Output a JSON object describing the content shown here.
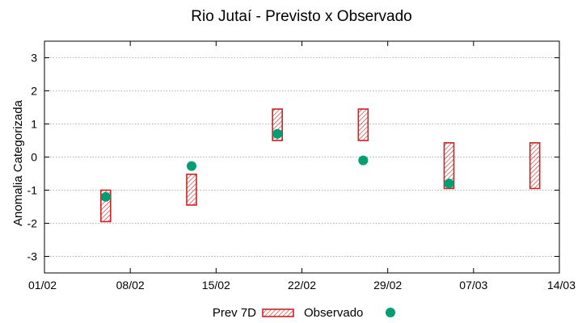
{
  "chart_data": {
    "type": "scatter",
    "title": "Rio Jutaí - Previsto x Observado",
    "xlabel": "",
    "ylabel": "Anomalia Categorizada",
    "x_range": [
      "01/02",
      "14/03"
    ],
    "ylim": [
      -3.5,
      3.5
    ],
    "x_ticks": [
      "01/02",
      "08/02",
      "15/02",
      "22/02",
      "29/02",
      "07/03",
      "14/03"
    ],
    "y_ticks": [
      -3,
      -2,
      -1,
      0,
      1,
      2,
      3
    ],
    "grid": "horizontal dotted",
    "legend_position": "bottom",
    "series": [
      {
        "name": "Prev 7D",
        "kind": "range-box",
        "color": "#cc2222",
        "points": [
          {
            "x": "06/02",
            "low": -1.95,
            "high": -1.0
          },
          {
            "x": "13/02",
            "low": -1.45,
            "high": -0.52
          },
          {
            "x": "20/02",
            "low": 0.5,
            "high": 1.45
          },
          {
            "x": "27/02",
            "low": 0.5,
            "high": 1.45
          },
          {
            "x": "05/03",
            "low": -0.95,
            "high": 0.43
          },
          {
            "x": "12/03",
            "low": -0.95,
            "high": 0.43
          }
        ]
      },
      {
        "name": "Observado",
        "kind": "point",
        "color": "#009e73",
        "points": [
          {
            "x": "06/02",
            "y": -1.2
          },
          {
            "x": "13/02",
            "y": -0.27
          },
          {
            "x": "20/02",
            "y": 0.7
          },
          {
            "x": "27/02",
            "y": -0.1
          },
          {
            "x": "05/03",
            "y": -0.8
          }
        ]
      }
    ]
  }
}
